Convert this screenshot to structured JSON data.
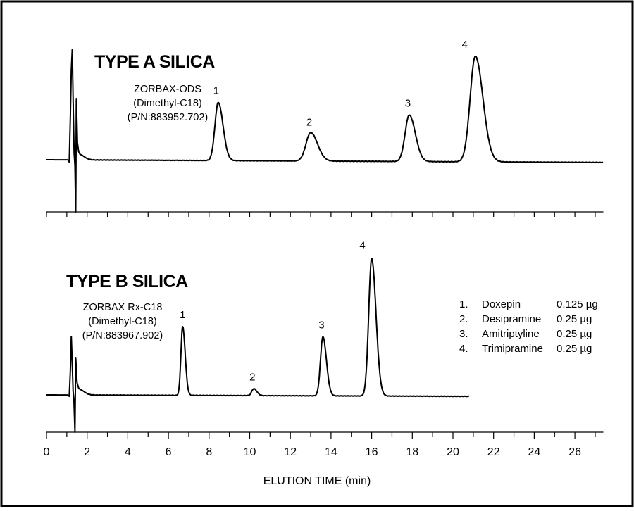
{
  "chart_data": {
    "type": "line",
    "x_axis": {
      "label": "ELUTION TIME (min)",
      "range": [
        0,
        27.4
      ],
      "ticks": [
        0,
        2,
        4,
        6,
        8,
        10,
        12,
        14,
        16,
        18,
        20,
        22,
        24,
        26
      ],
      "tick_labels": [
        "0",
        "2",
        "4",
        "6",
        "8",
        "10",
        "12",
        "14",
        "16",
        "18",
        "20",
        "22",
        "24",
        "26"
      ],
      "minor_step": 1
    },
    "panels": [
      {
        "title": "TYPE A SILICA",
        "column_lines": [
          "ZORBAX-ODS",
          "(Dimethyl-C18)",
          "(P/N:883952.702)"
        ],
        "x_end": 27.4,
        "peaks": [
          {
            "label": "1",
            "time": 8.45,
            "height": 0.55
          },
          {
            "label": "2",
            "time": 13.0,
            "height": 0.27
          },
          {
            "label": "3",
            "time": 17.85,
            "height": 0.44
          },
          {
            "label": "4",
            "time": 21.1,
            "height": 1.0
          }
        ]
      },
      {
        "title": "TYPE B SILICA",
        "column_lines": [
          "ZORBAX Rx-C18",
          "(Dimethyl-C18)",
          "(P/N:883967.902)"
        ],
        "x_end": 20.8,
        "peaks": [
          {
            "label": "1",
            "time": 6.7,
            "height": 0.5
          },
          {
            "label": "2",
            "time": 10.2,
            "height": 0.05
          },
          {
            "label": "3",
            "time": 13.6,
            "height": 0.43
          },
          {
            "label": "4",
            "time": 16.0,
            "height": 1.0
          }
        ]
      }
    ],
    "legend": {
      "position": "right",
      "items": [
        {
          "num": "1.",
          "name": "Doxepin",
          "amount": "0.125 µg"
        },
        {
          "num": "2.",
          "name": "Desipramine",
          "amount": "0.25 µg"
        },
        {
          "num": "3.",
          "name": "Amitriptyline",
          "amount": "0.25 µg"
        },
        {
          "num": "4.",
          "name": "Trimipramine",
          "amount": "0.25 µg"
        }
      ]
    },
    "grid": false
  }
}
